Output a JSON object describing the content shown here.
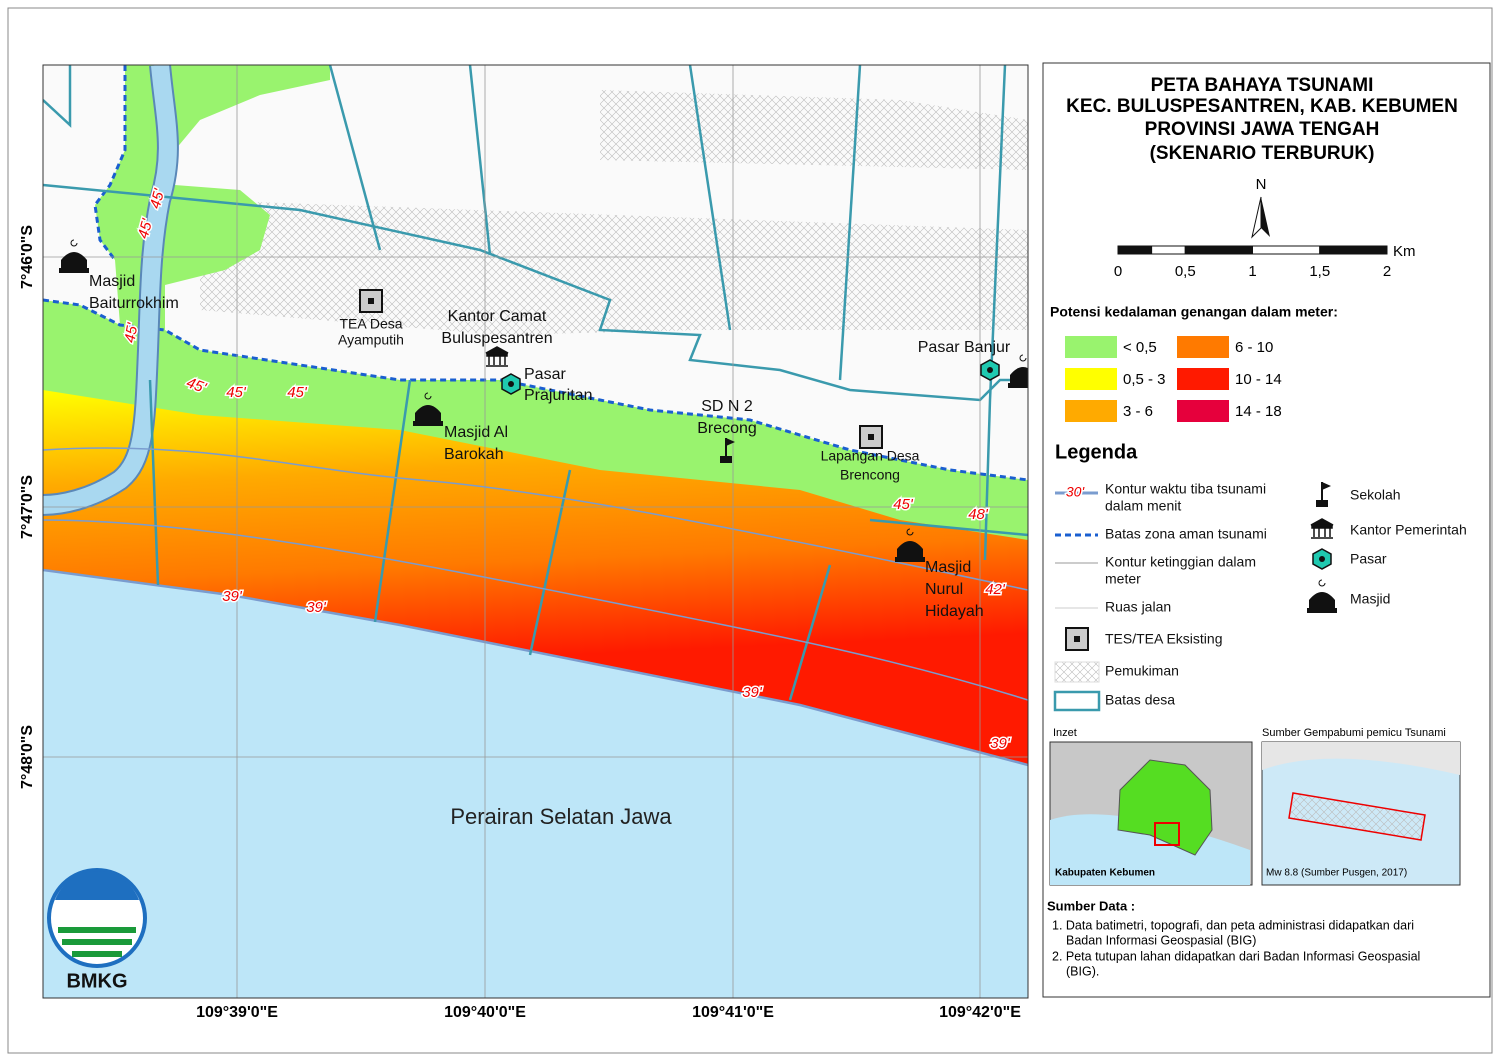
{
  "title": {
    "lines": [
      "PETA BAHAYA TSUNAMI",
      "KEC. BULUSPESANTREN, KAB. KEBUMEN",
      "PROVINSI JAWA TENGAH",
      "(SKENARIO TERBURUK)"
    ]
  },
  "north": "N",
  "scale": {
    "unit": "Km",
    "labels": [
      "0",
      "0,5",
      "1",
      "1,5",
      "2"
    ]
  },
  "depth_legend": {
    "heading": "Potensi kedalaman genangan dalam meter:",
    "items": [
      {
        "label": "< 0,5",
        "color": "#99f36e"
      },
      {
        "label": "0,5 - 3",
        "color": "#ffff00"
      },
      {
        "label": "3 - 6",
        "color": "#ffaa00"
      },
      {
        "label": "6 - 10",
        "color": "#ff7a00"
      },
      {
        "label": "10 - 14",
        "color": "#ff1a00"
      },
      {
        "label": "14 - 18",
        "color": "#e6003c"
      }
    ]
  },
  "legend": {
    "heading": "Legenda",
    "contour_sample": "30'",
    "items": [
      {
        "lines": [
          "Kontur waktu tiba tsunami",
          "dalam menit"
        ]
      },
      {
        "lines": [
          "Batas zona aman tsunami"
        ]
      },
      {
        "lines": [
          "Kontur ketinggian dalam",
          "meter"
        ]
      },
      {
        "lines": [
          "Ruas jalan"
        ]
      },
      {
        "lines": [
          "TES/TEA Eksisting"
        ]
      },
      {
        "lines": [
          "Pemukiman"
        ]
      },
      {
        "lines": [
          "Batas desa"
        ]
      }
    ],
    "symbols": [
      "Sekolah",
      "Kantor Pemerintah",
      "Pasar",
      "Masjid"
    ]
  },
  "insets": [
    {
      "title": "Inzet",
      "caption": "Kabupaten Kebumen"
    },
    {
      "title": "Sumber Gempabumi pemicu Tsunami",
      "caption": "Mw 8.8 (Sumber Pusgen, 2017)"
    }
  ],
  "sources": {
    "heading": "Sumber Data :",
    "items": [
      {
        "lines": [
          "1. Data batimetri, topografi, dan peta administrasi didapatkan dari",
          "Badan Informasi Geospasial (BIG)"
        ]
      },
      {
        "lines": [
          "2. Peta tutupan lahan didapatkan dari Badan Informasi Geospasial",
          "(BIG)."
        ]
      }
    ]
  },
  "map": {
    "latitudes": [
      "7°46'0\"S",
      "7°47'0\"S",
      "7°48'0\"S"
    ],
    "longitudes": [
      "109°39'0\"E",
      "109°40'0\"E",
      "109°41'0\"E",
      "109°42'0\"E"
    ],
    "labels": [
      "Masjid",
      "Baiturrokhim",
      "TEA Desa",
      "Ayamputih",
      "Kantor Camat",
      "Buluspesantren",
      "Pasar",
      "Prajuritan",
      "Masjid Al",
      "Barokah",
      "SD N 2",
      "Brecong",
      "Lapangan Desa",
      "Brencong",
      "Pasar Banjur",
      "Masjid",
      "Nurul",
      "Hidayah"
    ],
    "contour_labels": [
      "45'",
      "45'",
      "45'",
      "45'",
      "45'",
      "45'",
      "39'",
      "39'",
      "39'",
      "39'",
      "45'",
      "48'",
      "42'"
    ],
    "sea": "Perairan Selatan Jawa"
  },
  "logo": "BMKG"
}
